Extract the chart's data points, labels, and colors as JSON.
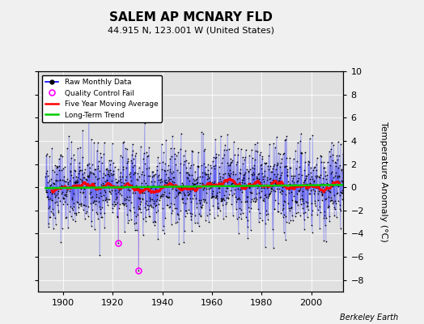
{
  "title": "SALEM AP MCNARY FLD",
  "subtitle": "44.915 N, 123.001 W (United States)",
  "ylabel": "Temperature Anomaly (°C)",
  "credit": "Berkeley Earth",
  "year_start": 1893,
  "year_end": 2013,
  "ylim": [
    -9,
    10
  ],
  "yticks": [
    -8,
    -6,
    -4,
    -2,
    0,
    2,
    4,
    6,
    8,
    10
  ],
  "xlim": [
    1890,
    2013
  ],
  "xticks": [
    1900,
    1920,
    1940,
    1960,
    1980,
    2000
  ],
  "fig_bg_color": "#f0f0f0",
  "plot_bg_color": "#e0e0e0",
  "raw_line_color": "#0000ff",
  "raw_dot_color": "#000000",
  "qc_fail_color": "#ff00ff",
  "qc_line_color": "#dd88dd",
  "moving_avg_color": "#ff0000",
  "trend_color": "#00cc00",
  "grid_color": "#ffffff",
  "seed": 42,
  "qc_fail_points": [
    [
      1922,
      -4.8
    ],
    [
      1930,
      -7.2
    ]
  ],
  "noise_std": 1.8
}
